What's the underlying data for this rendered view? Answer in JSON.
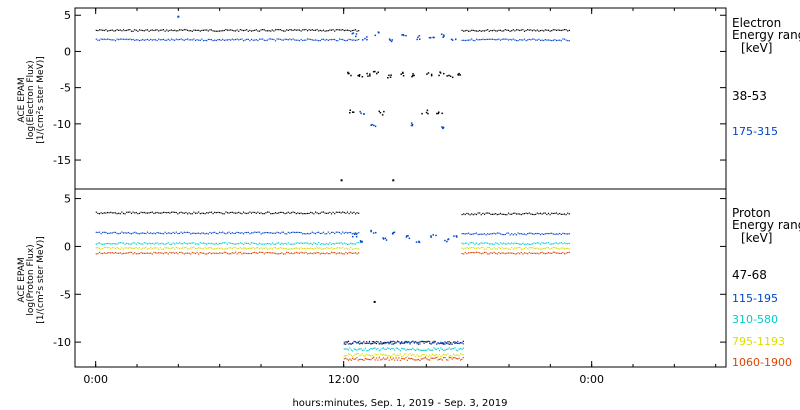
{
  "chart_data": [
    {
      "type": "scatter",
      "panel": "electron",
      "ylabel": [
        "ACE EPAM",
        "log(Electron Flux)",
        "[1/(cm²s ster MeV)]"
      ],
      "ylim": [
        -19,
        6
      ],
      "yticks": [
        5,
        0,
        -5,
        -10,
        -15
      ],
      "legend_title": [
        "Electron",
        "Energy ranges",
        "[keV]"
      ],
      "series": [
        {
          "name": "38-53",
          "color": "#000000",
          "baseline": [
            {
              "x": [
                0.0,
                12.7
              ],
              "y": 2.9
            },
            {
              "x": [
                17.7,
                22.9
              ],
              "y": 2.9
            }
          ],
          "gap_points": {
            "x": [
              12.3,
              12.8,
              13.1,
              13.5,
              14.2,
              14.8,
              15.3,
              16.1,
              16.7,
              17.1,
              17.6,
              12.4,
              13.8,
              15.9,
              16.6
            ],
            "y": [
              -3.0,
              -3.2,
              -3.1,
              -2.9,
              -3.3,
              -3.0,
              -3.2,
              -3.1,
              -3.0,
              -3.3,
              -3.1,
              -8.3,
              -8.4,
              -8.3,
              -8.4
            ]
          },
          "outliers": [
            {
              "x": 11.9,
              "y": -17.8
            },
            {
              "x": 14.4,
              "y": -17.8
            }
          ]
        },
        {
          "name": "175-315",
          "color": "#0044cc",
          "baseline": [
            {
              "x": [
                0.0,
                12.7
              ],
              "y": 1.6
            },
            {
              "x": [
                17.7,
                22.9
              ],
              "y": 1.6
            }
          ],
          "gap_points": {
            "x": [
              12.5,
              13.0,
              13.6,
              14.3,
              14.9,
              15.6,
              16.2,
              16.8,
              17.3,
              12.9,
              13.4,
              15.2,
              16.7
            ],
            "y": [
              2.4,
              1.9,
              2.5,
              1.7,
              2.2,
              2.0,
              1.8,
              2.3,
              1.9,
              -8.3,
              -10.2,
              -10.0,
              -10.5
            ]
          },
          "outliers": [
            {
              "x": 4.0,
              "y": 4.8
            }
          ]
        }
      ]
    },
    {
      "type": "scatter",
      "panel": "proton",
      "ylabel": [
        "ACE EPAM",
        "log(Proton Flux)",
        "[1/(cm²s ster MeV)]"
      ],
      "ylim": [
        -12.6,
        6
      ],
      "yticks": [
        5,
        0,
        -5,
        -10
      ],
      "xlabel": "hours:minutes, Sep.  1, 2019 - Sep.  3, 2019",
      "xticks": {
        "values": [
          0,
          12,
          24
        ],
        "labels": [
          "0:00",
          "12:00",
          "0:00"
        ]
      },
      "xlim": [
        -1,
        30.5
      ],
      "legend_title": [
        "Proton",
        "Energy ranges",
        "[keV]"
      ],
      "series": [
        {
          "name": "47-68",
          "color": "#000000",
          "baseline": [
            {
              "x": [
                0.0,
                12.7
              ],
              "y": 3.5
            },
            {
              "x": [
                17.7,
                22.9
              ],
              "y": 3.4
            }
          ],
          "gap_y": -10.0,
          "outliers": [
            {
              "x": 13.5,
              "y": -5.8
            }
          ]
        },
        {
          "name": "115-195",
          "color": "#0044cc",
          "baseline": [
            {
              "x": [
                0.0,
                12.7
              ],
              "y": 1.4
            },
            {
              "x": [
                17.7,
                22.9
              ],
              "y": 1.3
            }
          ],
          "gap_y": -10.0,
          "gap_points": {
            "x": [
              12.5,
              12.9,
              13.4,
              13.9,
              14.4,
              15.0,
              15.6,
              16.3,
              16.9,
              17.4
            ],
            "y": [
              1.3,
              0.6,
              1.6,
              0.8,
              1.4,
              1.1,
              0.5,
              1.2,
              0.7,
              1.0
            ]
          }
        },
        {
          "name": "310-580",
          "color": "#00cccc",
          "baseline": [
            {
              "x": [
                0.0,
                12.7
              ],
              "y": 0.3
            },
            {
              "x": [
                17.7,
                22.9
              ],
              "y": 0.3
            }
          ],
          "gap_y": -10.7
        },
        {
          "name": "795-1193",
          "color": "#dddd00",
          "baseline": [
            {
              "x": [
                0.0,
                12.7
              ],
              "y": -0.2
            },
            {
              "x": [
                17.7,
                22.9
              ],
              "y": -0.2
            }
          ],
          "gap_y": -11.3
        },
        {
          "name": "1060-1900",
          "color": "#dd4400",
          "baseline": [
            {
              "x": [
                0.0,
                12.7
              ],
              "y": -0.7
            },
            {
              "x": [
                17.7,
                22.9
              ],
              "y": -0.7
            }
          ],
          "gap_y": -11.7
        }
      ]
    }
  ]
}
